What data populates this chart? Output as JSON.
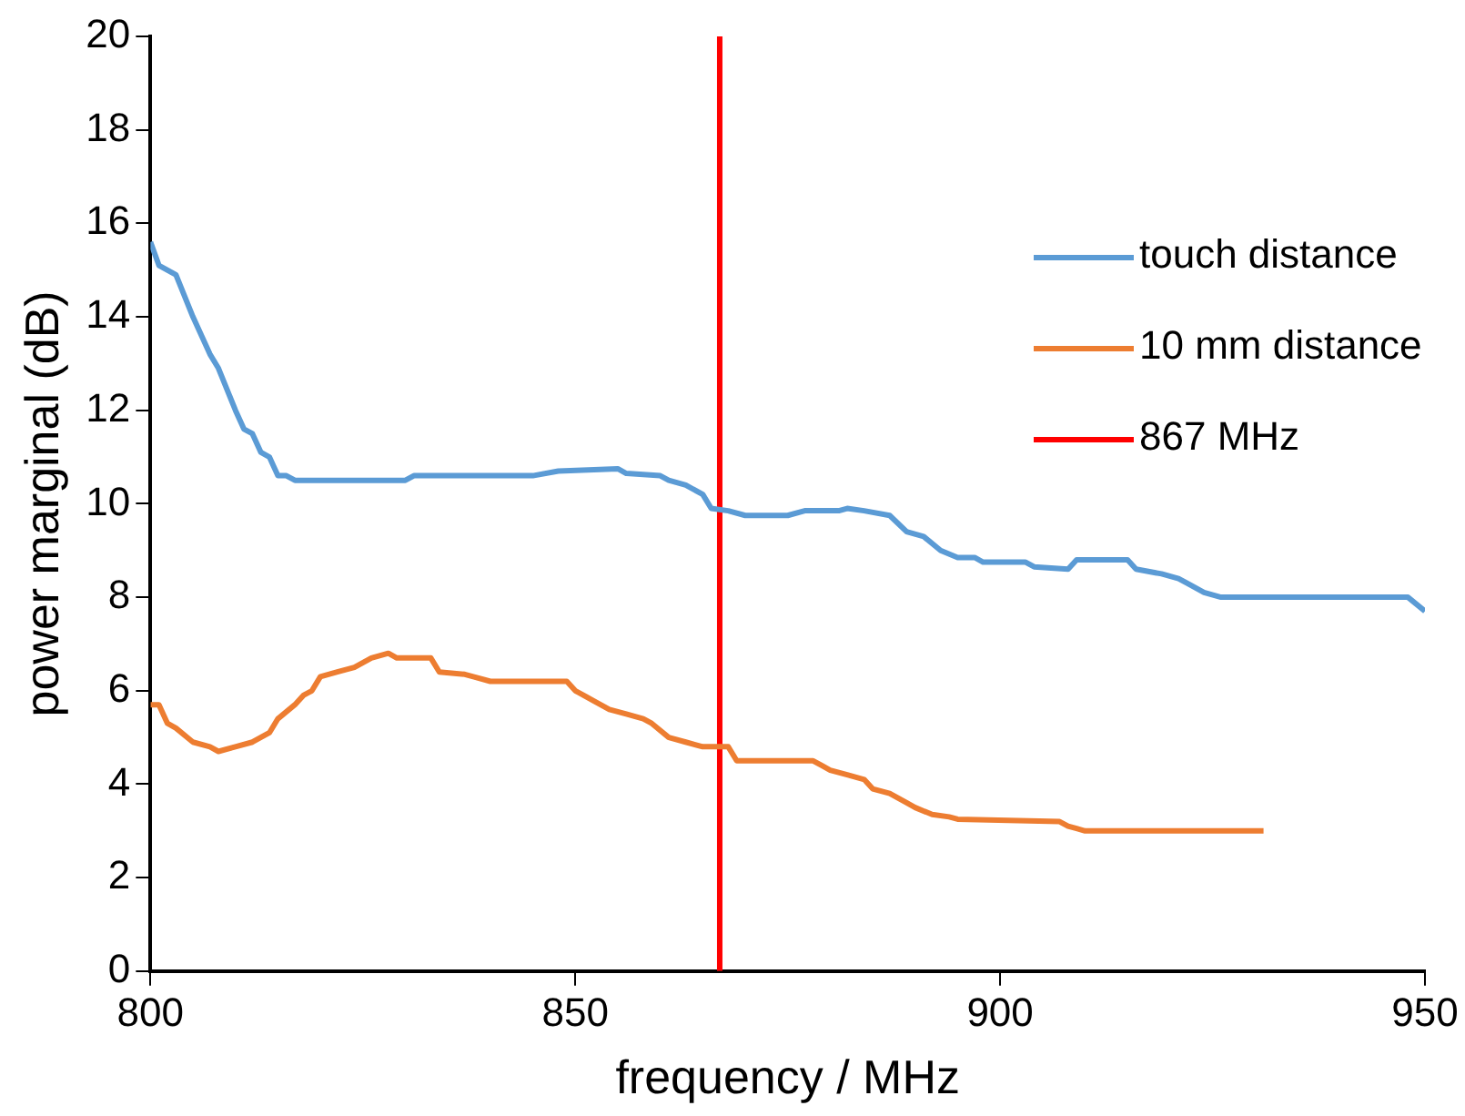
{
  "chart_data": {
    "type": "line",
    "xlabel": "frequency / MHz",
    "ylabel": "power marginal (dB)",
    "xlim": [
      800,
      950
    ],
    "ylim": [
      0,
      20
    ],
    "xticks": [
      800,
      850,
      900,
      950
    ],
    "yticks": [
      0,
      2,
      4,
      6,
      8,
      10,
      12,
      14,
      16,
      18,
      20
    ],
    "grid": false,
    "legend": "top right",
    "marker": "none",
    "line_style": "solid",
    "series": [
      {
        "name": "touch distance",
        "color": "#5b9bd5",
        "x": [
          800,
          801,
          803,
          805,
          807,
          808,
          810,
          811,
          812,
          813,
          814,
          815,
          816,
          817,
          830,
          831,
          845,
          848,
          855,
          856,
          860,
          861,
          863,
          865,
          866,
          868,
          870,
          875,
          877,
          881,
          882,
          884,
          887,
          889,
          891,
          893,
          895,
          897,
          898,
          903,
          904,
          908,
          909,
          915,
          916,
          919,
          921,
          922,
          924,
          926,
          948,
          950
        ],
        "values": [
          15.6,
          15.1,
          14.9,
          14.0,
          13.2,
          12.9,
          12.0,
          11.6,
          11.5,
          11.1,
          11.0,
          10.6,
          10.6,
          10.5,
          10.5,
          10.6,
          10.6,
          10.7,
          10.75,
          10.65,
          10.6,
          10.5,
          10.4,
          10.2,
          9.9,
          9.85,
          9.75,
          9.75,
          9.85,
          9.85,
          9.9,
          9.85,
          9.75,
          9.4,
          9.3,
          9.0,
          8.85,
          8.85,
          8.75,
          8.75,
          8.65,
          8.6,
          8.8,
          8.8,
          8.6,
          8.5,
          8.4,
          8.3,
          8.1,
          8.0,
          8.0,
          7.7
        ]
      },
      {
        "name": "10 mm distance",
        "color": "#ed7d31",
        "x": [
          800,
          801,
          802,
          803,
          805,
          807,
          808,
          810,
          812,
          814,
          815,
          817,
          818,
          819,
          820,
          822,
          824,
          826,
          828,
          829,
          833,
          834,
          837,
          838,
          840,
          849,
          850,
          852,
          854,
          856,
          858,
          859,
          861,
          863,
          865,
          868,
          869,
          878,
          879,
          880,
          882,
          884,
          885,
          887,
          889,
          890,
          892,
          894,
          895,
          907,
          908,
          909,
          910,
          931
        ],
        "values": [
          5.7,
          5.7,
          5.3,
          5.2,
          4.9,
          4.8,
          4.7,
          4.8,
          4.9,
          5.1,
          5.4,
          5.7,
          5.9,
          6.0,
          6.3,
          6.4,
          6.5,
          6.7,
          6.8,
          6.7,
          6.7,
          6.4,
          6.35,
          6.3,
          6.2,
          6.2,
          6.0,
          5.8,
          5.6,
          5.5,
          5.4,
          5.3,
          5.0,
          4.9,
          4.8,
          4.8,
          4.5,
          4.5,
          4.4,
          4.3,
          4.2,
          4.1,
          3.9,
          3.8,
          3.6,
          3.5,
          3.35,
          3.3,
          3.25,
          3.2,
          3.1,
          3.05,
          3.0,
          3.0
        ]
      },
      {
        "name": "867 MHz",
        "color": "#ff0000",
        "x": [
          867,
          867
        ],
        "values": [
          0,
          20
        ]
      }
    ]
  }
}
